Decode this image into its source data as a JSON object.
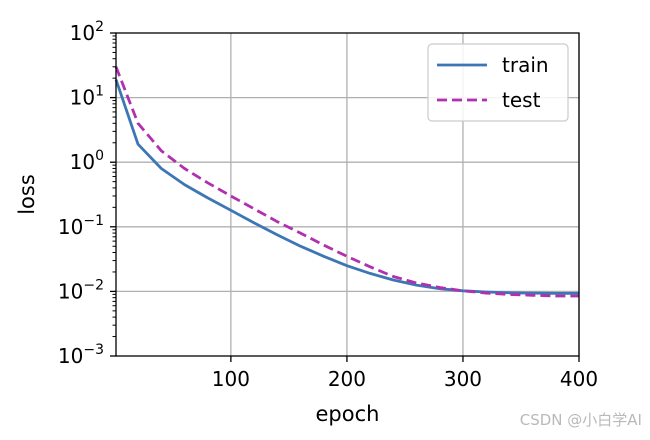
{
  "chart_data": {
    "type": "line",
    "title": "",
    "xlabel": "epoch",
    "ylabel": "loss",
    "xlim": [
      1,
      400
    ],
    "ylim": [
      0.001,
      100
    ],
    "yscale": "log",
    "grid": true,
    "legend_position": "top-right",
    "x_ticks": [
      {
        "value": 100,
        "label": "100"
      },
      {
        "value": 200,
        "label": "200"
      },
      {
        "value": 300,
        "label": "300"
      },
      {
        "value": 400,
        "label": "400"
      }
    ],
    "y_ticks": [
      {
        "value": 0.001,
        "base": "10",
        "exp": "−3"
      },
      {
        "value": 0.01,
        "base": "10",
        "exp": "−2"
      },
      {
        "value": 0.1,
        "base": "10",
        "exp": "−1"
      },
      {
        "value": 1,
        "base": "10",
        "exp": "0"
      },
      {
        "value": 10,
        "base": "10",
        "exp": "1"
      },
      {
        "value": 100,
        "base": "10",
        "exp": "2"
      }
    ],
    "series": [
      {
        "name": "train",
        "color": "#3d76b4",
        "style": "solid",
        "points": [
          [
            1,
            19
          ],
          [
            20,
            1.9
          ],
          [
            40,
            0.8
          ],
          [
            60,
            0.45
          ],
          [
            80,
            0.28
          ],
          [
            100,
            0.18
          ],
          [
            120,
            0.115
          ],
          [
            140,
            0.075
          ],
          [
            160,
            0.05
          ],
          [
            180,
            0.035
          ],
          [
            200,
            0.025
          ],
          [
            220,
            0.019
          ],
          [
            240,
            0.015
          ],
          [
            260,
            0.0125
          ],
          [
            280,
            0.011
          ],
          [
            300,
            0.0102
          ],
          [
            320,
            0.0098
          ],
          [
            340,
            0.0095
          ],
          [
            360,
            0.0094
          ],
          [
            380,
            0.0093
          ],
          [
            400,
            0.0093
          ]
        ]
      },
      {
        "name": "test",
        "color": "#b030b0",
        "style": "dashed",
        "points": [
          [
            1,
            30
          ],
          [
            20,
            4.0
          ],
          [
            40,
            1.5
          ],
          [
            60,
            0.8
          ],
          [
            80,
            0.48
          ],
          [
            100,
            0.3
          ],
          [
            120,
            0.19
          ],
          [
            140,
            0.12
          ],
          [
            160,
            0.08
          ],
          [
            180,
            0.052
          ],
          [
            200,
            0.035
          ],
          [
            220,
            0.024
          ],
          [
            240,
            0.017
          ],
          [
            260,
            0.0135
          ],
          [
            280,
            0.0115
          ],
          [
            300,
            0.0102
          ],
          [
            320,
            0.0094
          ],
          [
            340,
            0.009
          ],
          [
            360,
            0.0087
          ],
          [
            380,
            0.0085
          ],
          [
            400,
            0.0085
          ]
        ]
      }
    ]
  },
  "watermark": "CSDN @小白学AI"
}
